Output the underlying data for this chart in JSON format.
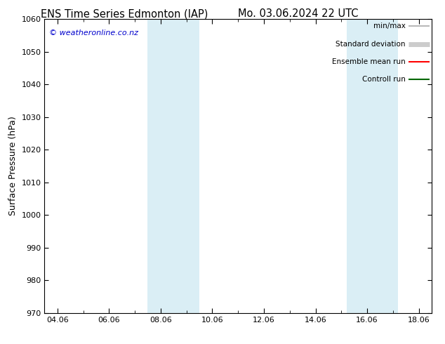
{
  "title_left": "ENS Time Series Edmonton (IAP)",
  "title_right": "Mo. 03.06.2024 22 UTC",
  "ylabel": "Surface Pressure (hPa)",
  "ylim": [
    970,
    1060
  ],
  "yticks": [
    970,
    980,
    990,
    1000,
    1010,
    1020,
    1030,
    1040,
    1050,
    1060
  ],
  "xlabels": [
    "04.06",
    "06.06",
    "08.06",
    "10.06",
    "12.06",
    "14.06",
    "16.06",
    "18.06"
  ],
  "xtick_positions": [
    0,
    2,
    4,
    6,
    8,
    10,
    12,
    14
  ],
  "xmin": -0.5,
  "xmax": 14.5,
  "shade_bands": [
    {
      "xmin": 3.5,
      "xmax": 5.5,
      "color": "#daeef5"
    },
    {
      "xmin": 11.2,
      "xmax": 13.2,
      "color": "#daeef5"
    }
  ],
  "copyright_text": "© weatheronline.co.nz",
  "copyright_color": "#0000cc",
  "legend_items": [
    {
      "label": "min/max",
      "color": "#aaaaaa",
      "lw": 1.2,
      "style": "solid"
    },
    {
      "label": "Standard deviation",
      "color": "#cccccc",
      "lw": 5,
      "style": "solid"
    },
    {
      "label": "Ensemble mean run",
      "color": "#ff0000",
      "lw": 1.5,
      "style": "solid"
    },
    {
      "label": "Controll run",
      "color": "#006600",
      "lw": 1.5,
      "style": "solid"
    }
  ],
  "bg_color": "#ffffff",
  "plot_bg_color": "#ffffff",
  "title_fontsize": 10.5,
  "ylabel_fontsize": 9,
  "tick_fontsize": 8,
  "legend_fontsize": 7.5,
  "copyright_fontsize": 8
}
